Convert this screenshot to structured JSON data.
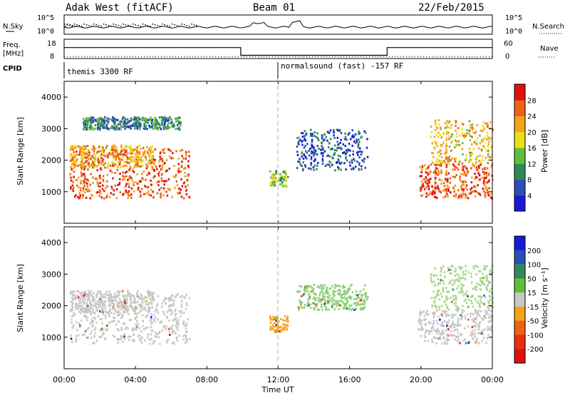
{
  "header": {
    "title": "Adak West (fitACF)",
    "beam": "Beam 01",
    "date": "22/Feb/2015"
  },
  "time_panel_labels": {
    "nsky": "N.Sky",
    "nsearch": "N.Search",
    "freq_line1": "Freq.",
    "freq_line2": "[MHz]",
    "nave": "Nave",
    "cpid": "CPID"
  },
  "cpid_labels": [
    {
      "start_hour": 0.0,
      "text": "themis 3300 RF"
    },
    {
      "start_hour": 12.0,
      "text": "normalsound (fast) -157 RF"
    }
  ],
  "chart_data": [
    {
      "type": "line",
      "name": "noise",
      "ylabel_left": "N.Sky",
      "ylabel_right": "N.Search",
      "left_ticks": [
        "10^5",
        "10^0"
      ],
      "right_ticks": [
        "10^5",
        "10^0"
      ],
      "xlim": [
        0,
        24
      ]
    },
    {
      "type": "line",
      "name": "frequency_nave",
      "ylabel_left": "Freq. [MHz]",
      "ylabel_right": "Nave",
      "left_ticks": [
        18,
        8
      ],
      "right_ticks": [
        60,
        0
      ],
      "freq_steps": [
        {
          "x0": 0.0,
          "x1": 9.9,
          "y": 14.3
        },
        {
          "x0": 9.9,
          "x1": 18.1,
          "y": 8.3
        },
        {
          "x0": 18.1,
          "x1": 24.0,
          "y": 14.3
        }
      ],
      "nave_level": 6
    },
    {
      "type": "heatmap",
      "name": "power",
      "title": "",
      "xlabel": "",
      "ylabel": "Slant Range [km]",
      "xlim": [
        0,
        24
      ],
      "ylim": [
        0,
        4500
      ],
      "yticks": [
        1000,
        2000,
        3000,
        4000
      ],
      "colorbar_label": "Power [dB]",
      "colorbar_ticks": [
        4,
        8,
        12,
        16,
        20,
        24,
        28
      ],
      "colorbar_colors": [
        "#1a1adb",
        "#2b4fb5",
        "#2f8a57",
        "#5fbf3a",
        "#e8e01a",
        "#f5a21a",
        "#f06018",
        "#e01010"
      ],
      "echo_bands": [
        {
          "x0": 0.3,
          "x1": 7.0,
          "y0": 820,
          "y1": 2400,
          "level": 0.9
        },
        {
          "x0": 0.3,
          "x1": 5.0,
          "y0": 1800,
          "y1": 2500,
          "level": 0.7
        },
        {
          "x0": 1.0,
          "x1": 6.5,
          "y0": 3000,
          "y1": 3400,
          "level": 0.25
        },
        {
          "x0": 11.5,
          "x1": 12.5,
          "y0": 1200,
          "y1": 1700,
          "level": 0.45
        },
        {
          "x0": 13.0,
          "x1": 17.0,
          "y0": 1700,
          "y1": 3000,
          "level": 0.15
        },
        {
          "x0": 19.8,
          "x1": 24.0,
          "y0": 820,
          "y1": 1900,
          "level": 0.9
        },
        {
          "x0": 20.5,
          "x1": 24.0,
          "y0": 1900,
          "y1": 3300,
          "level": 0.65
        }
      ]
    },
    {
      "type": "heatmap",
      "name": "velocity",
      "title": "",
      "xlabel": "Time UT",
      "ylabel": "Slant Range [km]",
      "xlim": [
        0,
        24
      ],
      "ylim": [
        0,
        4500
      ],
      "yticks": [
        1000,
        2000,
        3000,
        4000
      ],
      "xticks": [
        "00:00",
        "04:00",
        "08:00",
        "12:00",
        "16:00",
        "20:00",
        "00:00"
      ],
      "colorbar_label": "Velocity [m s⁻¹]",
      "colorbar_ticks": [
        200,
        100,
        50,
        15,
        -15,
        -50,
        -100,
        -200
      ],
      "colorbar_colors": [
        "#1a1adb",
        "#2b4fb5",
        "#2f8a57",
        "#5fbf3a",
        "#c8c8c8",
        "#f5a21a",
        "#f06018",
        "#e83010",
        "#e01010"
      ],
      "echo_bands": [
        {
          "x0": 0.3,
          "x1": 7.0,
          "y0": 820,
          "y1": 2400,
          "color": "#c8c8c8"
        },
        {
          "x0": 0.3,
          "x1": 5.0,
          "y0": 1800,
          "y1": 2500,
          "color": "#c8c8c8"
        },
        {
          "x0": 11.5,
          "x1": 12.5,
          "y0": 1200,
          "y1": 1700,
          "color": "#f5a21a"
        },
        {
          "x0": 13.0,
          "x1": 17.0,
          "y0": 1900,
          "y1": 2700,
          "color": "#8fd17a"
        },
        {
          "x0": 19.8,
          "x1": 24.0,
          "y0": 820,
          "y1": 1900,
          "color": "#c8c8c8"
        },
        {
          "x0": 20.5,
          "x1": 24.0,
          "y0": 1900,
          "y1": 3300,
          "color": "#a8d890"
        }
      ]
    }
  ]
}
